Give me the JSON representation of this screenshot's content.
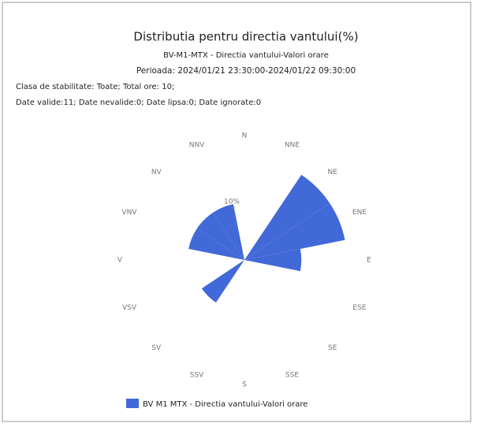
{
  "chart_data": {
    "type": "windrose",
    "title": "Distributia pentru directia vantului(%)",
    "subtitle": "BV-M1-MTX - Directia vantului-Valori orare",
    "period": "Perioada: 2024/01/21 23:30:00-2024/01/22 09:30:00",
    "notes": [
      "Clasa de stabilitate: Toate; Total ore: 10;",
      "Date valide:11; Date nevalide:0; Date lipsa:0; Date ignorate:0"
    ],
    "categories": [
      "N",
      "NNE",
      "NE",
      "ENE",
      "E",
      "ESE",
      "SE",
      "SSE",
      "S",
      "SSV",
      "SV",
      "VSV",
      "V",
      "VNV",
      "NV",
      "NNV"
    ],
    "series": [
      {
        "name": "BV M1 MTX - Directia vantului-Valori orare",
        "color": "#4169d8",
        "values": [
          0,
          0,
          18,
          18,
          10,
          0,
          0,
          0,
          0,
          0,
          9,
          0,
          0,
          10,
          10,
          10
        ]
      }
    ],
    "rlim": [
      0,
      18
    ],
    "rticks": [
      {
        "value": 10,
        "label": "10%"
      }
    ]
  }
}
